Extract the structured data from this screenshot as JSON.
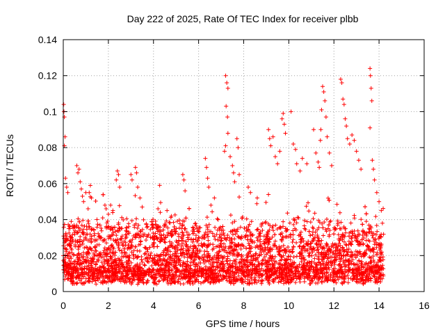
{
  "chart_data": {
    "type": "scatter",
    "title": "Day 222 of 2025, Rate Of TEC Index for receiver plbb",
    "xlabel": "GPS time / hours",
    "ylabel": "ROTI / TECUs",
    "xlim": [
      0,
      16
    ],
    "ylim": [
      0,
      0.14
    ],
    "xticks": [
      0,
      2,
      4,
      6,
      8,
      10,
      12,
      14,
      16
    ],
    "yticks": [
      0,
      0.02,
      0.04,
      0.06,
      0.08,
      0.1,
      0.12,
      0.14
    ],
    "xtick_labels": [
      "0",
      "2",
      "4",
      "6",
      "8",
      "10",
      "12",
      "14",
      "16"
    ],
    "ytick_labels": [
      "0",
      "0.02",
      "0.04",
      "0.06",
      "0.08",
      "0.1",
      "0.12",
      "0.14"
    ],
    "grid": true,
    "marker": "+",
    "color": "#ff0000",
    "data_range_hours": [
      0,
      14.2
    ],
    "series": [
      {
        "name": "ROTI",
        "points": [
          [
            0.02,
            0.104
          ],
          [
            0.03,
            0.1
          ],
          [
            0.05,
            0.097
          ],
          [
            0.08,
            0.086
          ],
          [
            0.05,
            0.081
          ],
          [
            0.1,
            0.063
          ],
          [
            0.15,
            0.058
          ],
          [
            0.2,
            0.055
          ],
          [
            0.6,
            0.07
          ],
          [
            0.65,
            0.066
          ],
          [
            0.7,
            0.068
          ],
          [
            0.75,
            0.061
          ],
          [
            0.8,
            0.057
          ],
          [
            0.85,
            0.053
          ],
          [
            0.9,
            0.05
          ],
          [
            1.0,
            0.055
          ],
          [
            1.2,
            0.059
          ],
          [
            1.15,
            0.055
          ],
          [
            1.25,
            0.052
          ],
          [
            1.1,
            0.046
          ],
          [
            1.9,
            0.046
          ],
          [
            2.0,
            0.043
          ],
          [
            2.1,
            0.048
          ],
          [
            2.2,
            0.045
          ],
          [
            2.35,
            0.062
          ],
          [
            2.4,
            0.067
          ],
          [
            2.45,
            0.065
          ],
          [
            2.5,
            0.058
          ],
          [
            3.0,
            0.065
          ],
          [
            3.05,
            0.062
          ],
          [
            3.2,
            0.069
          ],
          [
            3.25,
            0.066
          ],
          [
            3.3,
            0.058
          ],
          [
            3.4,
            0.052
          ],
          [
            3.5,
            0.047
          ],
          [
            4.2,
            0.046
          ],
          [
            4.3,
            0.044
          ],
          [
            4.6,
            0.045
          ],
          [
            5.3,
            0.065
          ],
          [
            5.35,
            0.062
          ],
          [
            5.4,
            0.056
          ],
          [
            6.3,
            0.074
          ],
          [
            6.35,
            0.069
          ],
          [
            6.4,
            0.063
          ],
          [
            6.45,
            0.058
          ],
          [
            6.7,
            0.052
          ],
          [
            7.2,
            0.12
          ],
          [
            7.25,
            0.116
          ],
          [
            7.3,
            0.113
          ],
          [
            7.22,
            0.103
          ],
          [
            7.28,
            0.097
          ],
          [
            7.3,
            0.088
          ],
          [
            7.2,
            0.081
          ],
          [
            7.15,
            0.078
          ],
          [
            7.4,
            0.075
          ],
          [
            7.5,
            0.07
          ],
          [
            7.55,
            0.066
          ],
          [
            7.6,
            0.061
          ],
          [
            7.7,
            0.085
          ],
          [
            7.75,
            0.08
          ],
          [
            7.8,
            0.065
          ],
          [
            8.2,
            0.058
          ],
          [
            8.3,
            0.055
          ],
          [
            8.6,
            0.052
          ],
          [
            9.1,
            0.09
          ],
          [
            9.15,
            0.085
          ],
          [
            9.2,
            0.081
          ],
          [
            9.3,
            0.086
          ],
          [
            9.4,
            0.075
          ],
          [
            9.5,
            0.071
          ],
          [
            9.6,
            0.078
          ],
          [
            9.7,
            0.096
          ],
          [
            9.75,
            0.099
          ],
          [
            9.8,
            0.093
          ],
          [
            9.85,
            0.088
          ],
          [
            10.1,
            0.1
          ],
          [
            10.2,
            0.082
          ],
          [
            10.3,
            0.079
          ],
          [
            10.35,
            0.071
          ],
          [
            10.5,
            0.067
          ],
          [
            10.6,
            0.074
          ],
          [
            10.8,
            0.071
          ],
          [
            11.1,
            0.09
          ],
          [
            11.2,
            0.077
          ],
          [
            11.3,
            0.072
          ],
          [
            11.35,
            0.069
          ],
          [
            11.4,
            0.084
          ],
          [
            11.42,
            0.09
          ],
          [
            11.45,
            0.101
          ],
          [
            11.5,
            0.114
          ],
          [
            11.55,
            0.111
          ],
          [
            11.6,
            0.106
          ],
          [
            11.65,
            0.097
          ],
          [
            11.7,
            0.086
          ],
          [
            11.8,
            0.077
          ],
          [
            11.9,
            0.07
          ],
          [
            12.3,
            0.118
          ],
          [
            12.35,
            0.116
          ],
          [
            12.4,
            0.107
          ],
          [
            12.45,
            0.104
          ],
          [
            12.5,
            0.096
          ],
          [
            12.55,
            0.092
          ],
          [
            12.6,
            0.085
          ],
          [
            12.7,
            0.082
          ],
          [
            12.8,
            0.087
          ],
          [
            12.9,
            0.084
          ],
          [
            13.0,
            0.078
          ],
          [
            13.1,
            0.073
          ],
          [
            13.2,
            0.068
          ],
          [
            13.6,
            0.124
          ],
          [
            13.62,
            0.12
          ],
          [
            13.65,
            0.113
          ],
          [
            13.68,
            0.106
          ],
          [
            13.6,
            0.091
          ],
          [
            13.7,
            0.073
          ],
          [
            13.75,
            0.068
          ],
          [
            13.8,
            0.062
          ],
          [
            13.9,
            0.055
          ],
          [
            14.0,
            0.05
          ],
          [
            14.1,
            0.045
          ],
          [
            14.15,
            0.038
          ]
        ]
      }
    ]
  }
}
